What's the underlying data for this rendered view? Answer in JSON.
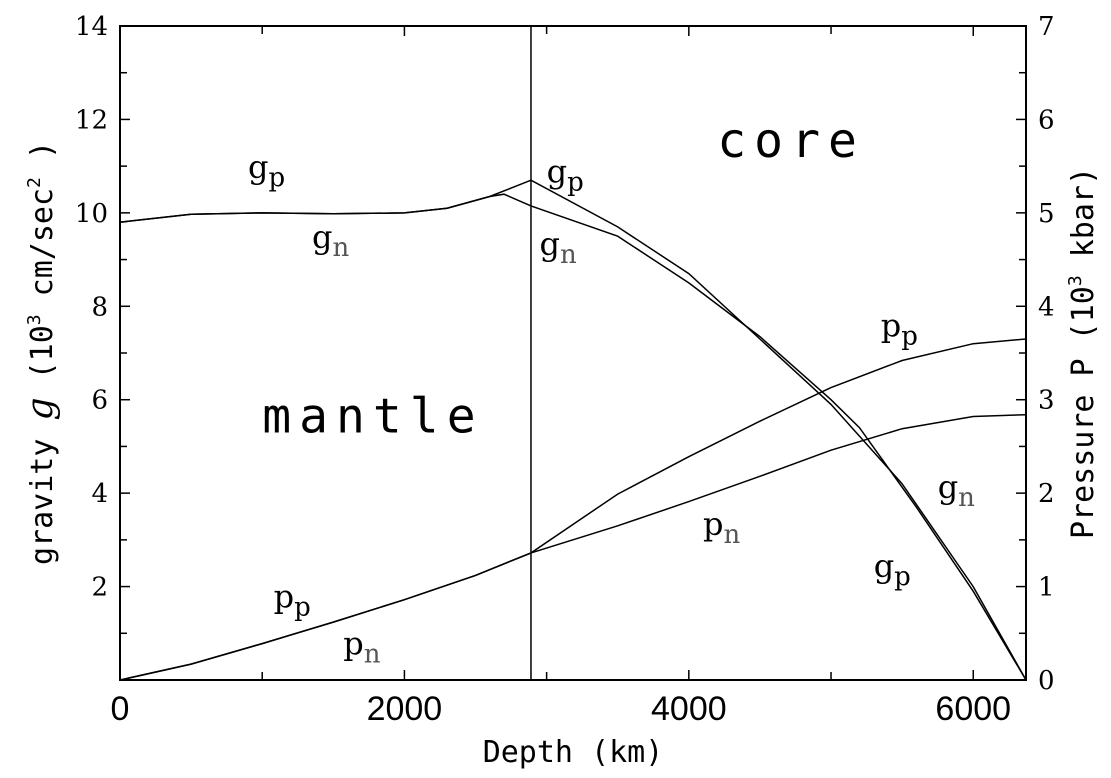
{
  "chart_data": {
    "type": "line",
    "xlabel": "Depth (km)",
    "ylabel_left": {
      "prefix": "gravity ",
      "symbol": "g",
      "units_open": " (10",
      "units_exp": "3",
      "units_mid": " cm/sec",
      "units_exp2": "2",
      "units_close": " )"
    },
    "ylabel_right": {
      "prefix": "Pressure P  (10",
      "exp": "3",
      "suffix": " kbar)"
    },
    "xlim": [
      0,
      6371
    ],
    "ylim_left": [
      0,
      14
    ],
    "ylim_right": [
      0,
      7
    ],
    "x_ticks": [
      {
        "value": 0,
        "label": "0"
      },
      {
        "value": 2000,
        "label": "2000"
      },
      {
        "value": 4000,
        "label": "4000"
      },
      {
        "value": 6000,
        "label": "6000"
      }
    ],
    "x_minor_ticks": [
      1000,
      3000,
      5000
    ],
    "y_left_ticks": [
      {
        "value": 2,
        "label": "2"
      },
      {
        "value": 4,
        "label": "4"
      },
      {
        "value": 6,
        "label": "6"
      },
      {
        "value": 8,
        "label": "8"
      },
      {
        "value": 10,
        "label": "10"
      },
      {
        "value": 12,
        "label": "12"
      },
      {
        "value": 14,
        "label": "14"
      }
    ],
    "y_right_ticks": [
      {
        "value": 0,
        "label": "0"
      },
      {
        "value": 1,
        "label": "1"
      },
      {
        "value": 2,
        "label": "2"
      },
      {
        "value": 3,
        "label": "3"
      },
      {
        "value": 4,
        "label": "4"
      },
      {
        "value": 5,
        "label": "5"
      },
      {
        "value": 6,
        "label": "6"
      },
      {
        "value": 7,
        "label": "7"
      }
    ],
    "boundary_depth": 2890,
    "regions": [
      {
        "label": "mantle",
        "x": 1000,
        "y": 5.3
      },
      {
        "label": "core",
        "x": 4200,
        "y": 11.2
      }
    ],
    "series": [
      {
        "key": "g_p",
        "axis": "left",
        "points": [
          [
            0,
            9.8
          ],
          [
            500,
            9.97
          ],
          [
            1000,
            10.0
          ],
          [
            1500,
            9.98
          ],
          [
            2000,
            10.0
          ],
          [
            2300,
            10.1
          ],
          [
            2600,
            10.35
          ],
          [
            2890,
            10.7
          ],
          [
            3500,
            9.7
          ],
          [
            4000,
            8.7
          ],
          [
            4500,
            7.3
          ],
          [
            5000,
            5.9
          ],
          [
            5500,
            4.2
          ],
          [
            6000,
            2.0
          ],
          [
            6371,
            0
          ]
        ]
      },
      {
        "key": "g_n",
        "axis": "left",
        "points": [
          [
            0,
            9.8
          ],
          [
            500,
            9.97
          ],
          [
            1000,
            10.0
          ],
          [
            1500,
            9.98
          ],
          [
            2000,
            10.0
          ],
          [
            2300,
            10.1
          ],
          [
            2600,
            10.35
          ],
          [
            2700,
            10.4
          ],
          [
            2890,
            10.15
          ],
          [
            3500,
            9.5
          ],
          [
            4000,
            8.5
          ],
          [
            4500,
            7.35
          ],
          [
            5000,
            6.0
          ],
          [
            5200,
            5.4
          ],
          [
            5600,
            3.7
          ],
          [
            6000,
            1.9
          ],
          [
            6371,
            0
          ]
        ]
      },
      {
        "key": "p_p",
        "axis": "right",
        "points": [
          [
            0,
            0
          ],
          [
            500,
            0.17
          ],
          [
            1000,
            0.39
          ],
          [
            1500,
            0.62
          ],
          [
            2000,
            0.86
          ],
          [
            2500,
            1.12
          ],
          [
            2890,
            1.36
          ],
          [
            3500,
            1.99
          ],
          [
            4000,
            2.39
          ],
          [
            4500,
            2.77
          ],
          [
            5000,
            3.13
          ],
          [
            5500,
            3.42
          ],
          [
            6000,
            3.6
          ],
          [
            6371,
            3.65
          ]
        ]
      },
      {
        "key": "p_n",
        "axis": "right",
        "points": [
          [
            0,
            0
          ],
          [
            500,
            0.17
          ],
          [
            1000,
            0.39
          ],
          [
            1500,
            0.62
          ],
          [
            2000,
            0.86
          ],
          [
            2500,
            1.12
          ],
          [
            2890,
            1.36
          ],
          [
            3500,
            1.65
          ],
          [
            4000,
            1.91
          ],
          [
            4500,
            2.18
          ],
          [
            5000,
            2.46
          ],
          [
            5500,
            2.69
          ],
          [
            6000,
            2.82
          ],
          [
            6371,
            2.84
          ]
        ]
      }
    ],
    "curve_labels": [
      {
        "base": "g",
        "sub": "p",
        "sub_style": "p",
        "x": 900,
        "y": 10.75
      },
      {
        "base": "g",
        "sub": "n",
        "sub_style": "n",
        "x": 1350,
        "y": 9.25
      },
      {
        "base": "g",
        "sub": "p",
        "sub_style": "p",
        "x": 3000,
        "y": 10.65
      },
      {
        "base": "g",
        "sub": "n",
        "sub_style": "n",
        "x": 2950,
        "y": 9.1
      },
      {
        "base": "p",
        "sub": "p",
        "sub_style": "p",
        "x": 5350,
        "y": 7.35
      },
      {
        "base": "g",
        "sub": "n",
        "sub_style": "n",
        "x": 5750,
        "y": 3.9
      },
      {
        "base": "p",
        "sub": "n",
        "sub_style": "n",
        "x": 4100,
        "y": 3.1
      },
      {
        "base": "g",
        "sub": "p",
        "sub_style": "p",
        "x": 5300,
        "y": 2.2
      },
      {
        "base": "p",
        "sub": "p",
        "sub_style": "p",
        "x": 1080,
        "y": 1.55
      },
      {
        "base": "p",
        "sub": "n",
        "sub_style": "n",
        "x": 1570,
        "y": 0.55
      }
    ]
  }
}
